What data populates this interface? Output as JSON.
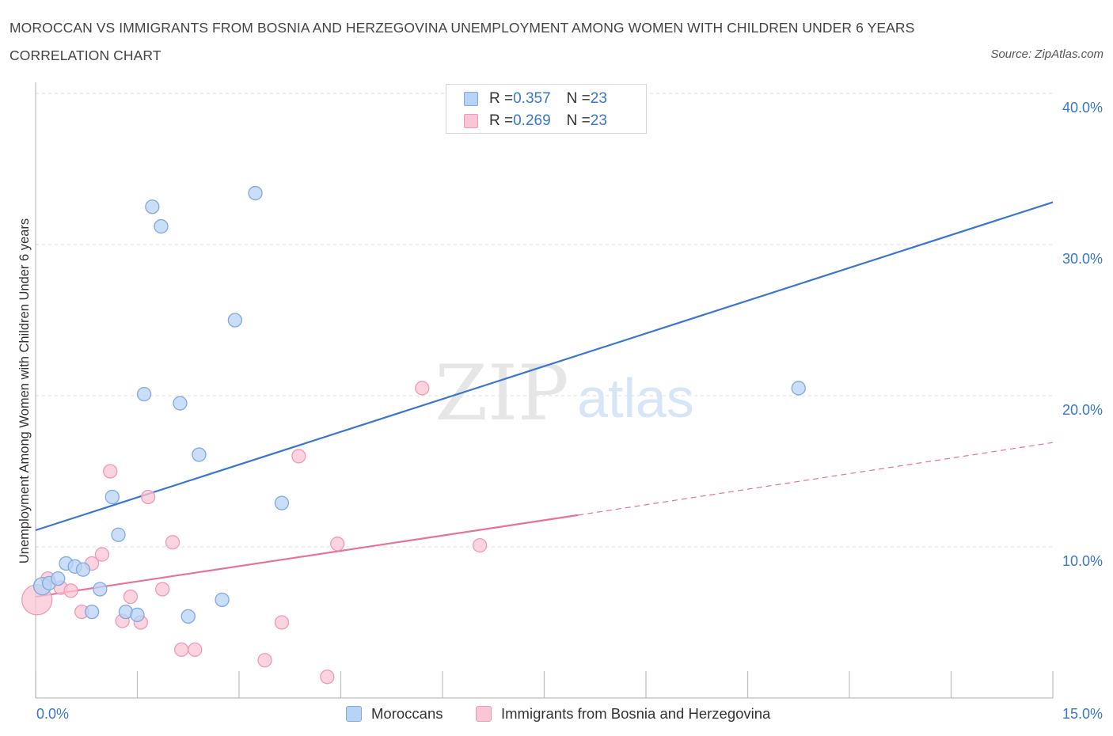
{
  "title": "MOROCCAN VS IMMIGRANTS FROM BOSNIA AND HERZEGOVINA UNEMPLOYMENT AMONG WOMEN WITH CHILDREN UNDER 6 YEARS CORRELATION CHART",
  "source": "Source: ZipAtlas.com",
  "watermark": {
    "zip": "ZIP",
    "atlas": "atlas"
  },
  "legend": {
    "rows": [
      {
        "r_label": "R = ",
        "r_value": "0.357",
        "n_label": "N = ",
        "n_value": "23"
      },
      {
        "r_label": "R = ",
        "r_value": "0.269",
        "n_label": "N = ",
        "n_value": "23"
      }
    ]
  },
  "colors": {
    "moroccans_fill": "#b8d3f5",
    "moroccans_stroke": "#7fa9df",
    "moroccans_line": "#3a76d0",
    "bosnia_fill": "#f9c6d6",
    "bosnia_stroke": "#ee9ab4",
    "bosnia_line": "#e5729c",
    "grid": "#dddddd",
    "axis": "#bdbdbd",
    "tick_text": "#3a76c9"
  },
  "chart_data": {
    "type": "scatter",
    "xlabel": "",
    "ylabel": "Unemployment Among Women with Children Under 6 years",
    "xlim": [
      0,
      15
    ],
    "ylim": [
      0,
      40
    ],
    "x_tick_labels": [
      "0.0%",
      "15.0%"
    ],
    "y_ticks": [
      10,
      20,
      30,
      40
    ],
    "y_tick_labels": [
      "10.0%",
      "20.0%",
      "30.0%",
      "40.0%"
    ],
    "legend_position": "top-center",
    "series": [
      {
        "name": "Moroccans",
        "r": 0.357,
        "n": 23,
        "points": [
          [
            0.1,
            7.4
          ],
          [
            0.2,
            7.6
          ],
          [
            0.33,
            7.9
          ],
          [
            0.45,
            8.9
          ],
          [
            0.58,
            8.7
          ],
          [
            0.7,
            8.5
          ],
          [
            0.83,
            5.7
          ],
          [
            0.95,
            7.2
          ],
          [
            1.13,
            13.3
          ],
          [
            1.22,
            10.8
          ],
          [
            1.33,
            5.7
          ],
          [
            1.5,
            5.5
          ],
          [
            1.6,
            20.1
          ],
          [
            1.72,
            32.5
          ],
          [
            1.85,
            31.2
          ],
          [
            2.13,
            19.5
          ],
          [
            2.25,
            5.4
          ],
          [
            2.41,
            16.1
          ],
          [
            2.75,
            6.5
          ],
          [
            2.94,
            25.0
          ],
          [
            3.24,
            33.4
          ],
          [
            3.63,
            12.9
          ],
          [
            11.25,
            20.5
          ]
        ],
        "trend": {
          "x": [
            0,
            15
          ],
          "y": [
            11.1,
            32.8
          ]
        }
      },
      {
        "name": "Immigrants from Bosnia and Herzegovina",
        "r": 0.269,
        "n": 23,
        "points": [
          [
            0.02,
            6.5
          ],
          [
            0.18,
            7.9
          ],
          [
            0.37,
            7.3
          ],
          [
            0.52,
            7.1
          ],
          [
            0.68,
            5.7
          ],
          [
            0.83,
            8.9
          ],
          [
            0.98,
            9.5
          ],
          [
            1.1,
            15.0
          ],
          [
            1.28,
            5.1
          ],
          [
            1.4,
            6.7
          ],
          [
            1.55,
            5.0
          ],
          [
            1.66,
            13.3
          ],
          [
            1.87,
            7.2
          ],
          [
            2.02,
            10.3
          ],
          [
            2.15,
            3.2
          ],
          [
            2.35,
            3.2
          ],
          [
            3.38,
            2.5
          ],
          [
            3.63,
            5.0
          ],
          [
            3.88,
            16.0
          ],
          [
            4.3,
            1.4
          ],
          [
            4.45,
            10.2
          ],
          [
            5.7,
            20.5
          ],
          [
            6.55,
            10.1
          ]
        ],
        "trend_solid": {
          "x": [
            0,
            8.0
          ],
          "y": [
            6.7,
            12.1
          ]
        },
        "trend_dashed": {
          "x": [
            8.0,
            15
          ],
          "y": [
            12.1,
            16.9
          ]
        }
      }
    ]
  },
  "bottom_legend": [
    {
      "label": "Moroccans"
    },
    {
      "label": "Immigrants from Bosnia and Herzegovina"
    }
  ]
}
